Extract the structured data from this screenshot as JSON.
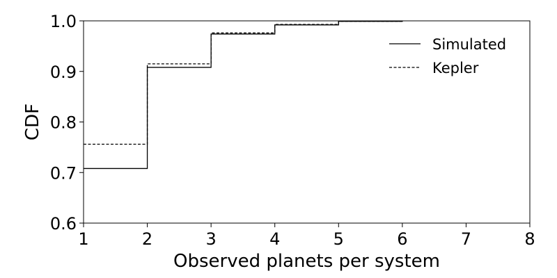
{
  "chart_data": {
    "type": "line",
    "xlabel": "Observed planets per system",
    "ylabel": "CDF",
    "xlim": [
      1,
      8
    ],
    "ylim": [
      0.6,
      1.0
    ],
    "xticks": [
      "1",
      "2",
      "3",
      "4",
      "5",
      "6",
      "7",
      "8"
    ],
    "yticks": [
      "0.6",
      "0.7",
      "0.8",
      "0.9",
      "1.0"
    ],
    "grid": false,
    "legend_position": "top-right",
    "step_function": true,
    "series": [
      {
        "name": "Simulated",
        "line_style": "solid",
        "color": "#000000",
        "x": [
          1,
          2,
          3,
          4,
          5,
          6
        ],
        "y": [
          0.708,
          0.908,
          0.974,
          0.992,
          0.999,
          1.0
        ]
      },
      {
        "name": "Kepler",
        "line_style": "dashed",
        "color": "#000000",
        "x": [
          1,
          2,
          3,
          4,
          5,
          6
        ],
        "y": [
          0.756,
          0.915,
          0.976,
          0.993,
          0.999,
          1.0
        ]
      }
    ]
  }
}
